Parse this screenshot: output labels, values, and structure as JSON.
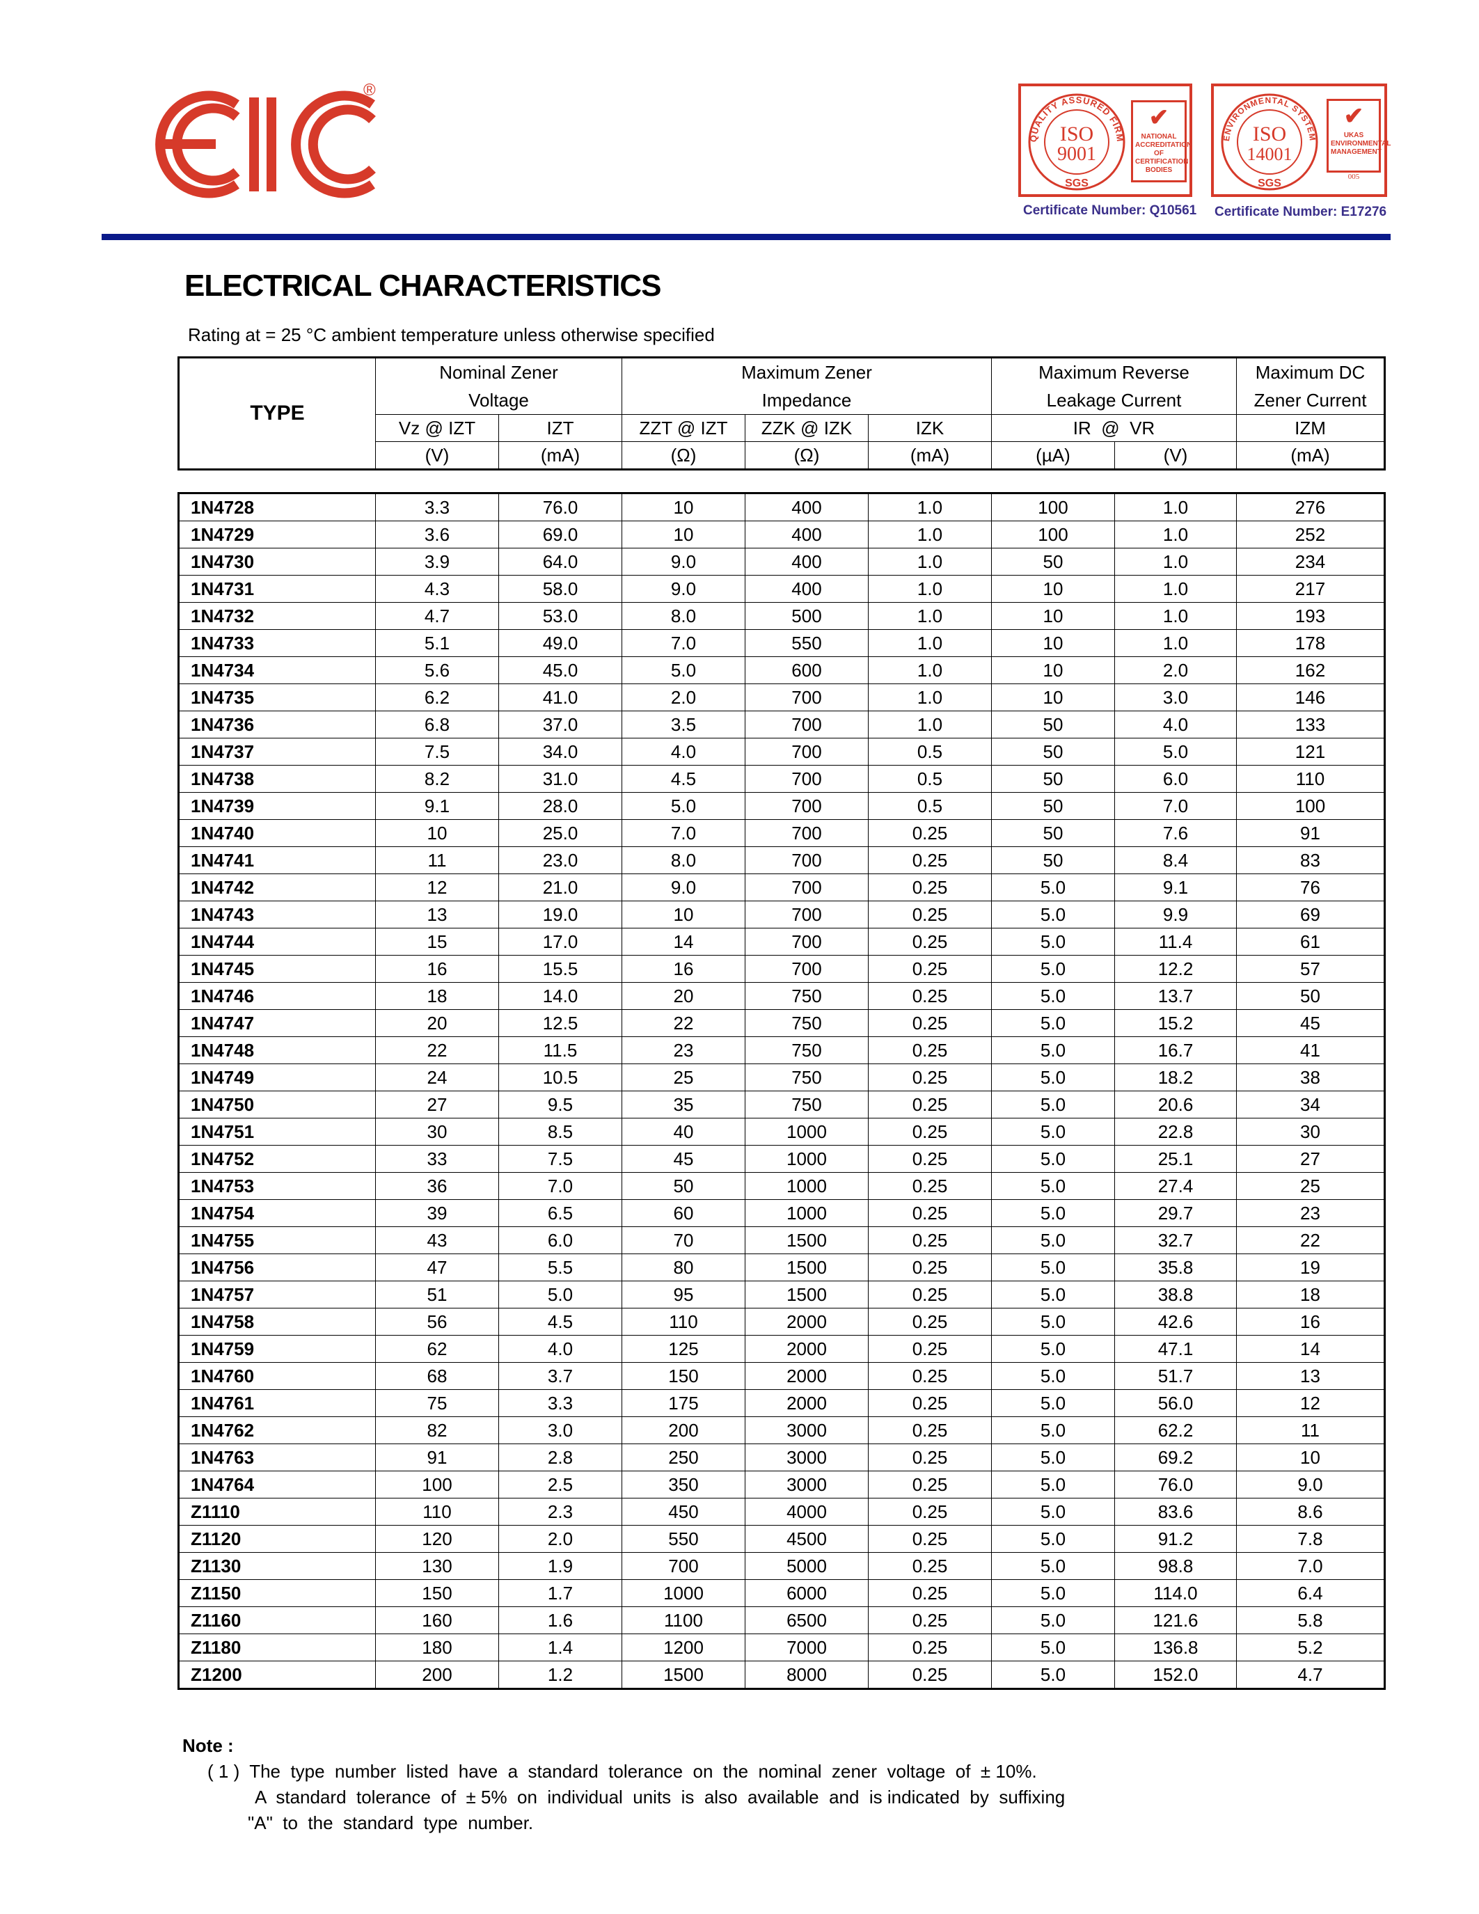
{
  "header": {
    "logo_text": "EIC",
    "registered": "®",
    "cert1": {
      "iso": "ISO",
      "num": "9001",
      "ring": "QUALITY ASSURED FIRM",
      "sgs": "SGS",
      "badge": "NATIONAL ACCREDITATION OF CERTIFICATION BODIES",
      "number": "Certificate Number: Q10561"
    },
    "cert2": {
      "iso": "ISO",
      "num": "14001",
      "ring": "ENVIRONMENTAL SYSTEM",
      "sgs": "SGS",
      "badge": "UKAS ENVIRONMENTAL MANAGEMENT",
      "code": "005",
      "number": "Certificate Number: E17276"
    },
    "brand_color": "#d63a2a",
    "rule_color": "#0a1a8a"
  },
  "title": "ELECTRICAL CHARACTERISTICS",
  "rating": "Rating at  = 25 °C ambient temperature unless otherwise specified",
  "table": {
    "groups": [
      "TYPE",
      "Nominal Zener\nVoltage",
      "Maximum Zener\nImpedance",
      "Maximum Reverse\nLeakage Current",
      "Maximum DC\nZener Current"
    ],
    "params": [
      "Vz @ IZT",
      "IZT",
      "ZZT @ IZT",
      "ZZK @ IZK",
      "IZK",
      "IR  @  VR",
      "IZM"
    ],
    "units": [
      "(V)",
      "(mA)",
      "(Ω)",
      "(Ω)",
      "(mA)",
      "(µA)",
      "(V)",
      "(mA)"
    ],
    "rows": [
      [
        "1N4728",
        "3.3",
        "76.0",
        "10",
        "400",
        "1.0",
        "100",
        "1.0",
        "276"
      ],
      [
        "1N4729",
        "3.6",
        "69.0",
        "10",
        "400",
        "1.0",
        "100",
        "1.0",
        "252"
      ],
      [
        "1N4730",
        "3.9",
        "64.0",
        "9.0",
        "400",
        "1.0",
        "50",
        "1.0",
        "234"
      ],
      [
        "1N4731",
        "4.3",
        "58.0",
        "9.0",
        "400",
        "1.0",
        "10",
        "1.0",
        "217"
      ],
      [
        "1N4732",
        "4.7",
        "53.0",
        "8.0",
        "500",
        "1.0",
        "10",
        "1.0",
        "193"
      ],
      [
        "1N4733",
        "5.1",
        "49.0",
        "7.0",
        "550",
        "1.0",
        "10",
        "1.0",
        "178"
      ],
      [
        "1N4734",
        "5.6",
        "45.0",
        "5.0",
        "600",
        "1.0",
        "10",
        "2.0",
        "162"
      ],
      [
        "1N4735",
        "6.2",
        "41.0",
        "2.0",
        "700",
        "1.0",
        "10",
        "3.0",
        "146"
      ],
      [
        "1N4736",
        "6.8",
        "37.0",
        "3.5",
        "700",
        "1.0",
        "50",
        "4.0",
        "133"
      ],
      [
        "1N4737",
        "7.5",
        "34.0",
        "4.0",
        "700",
        "0.5",
        "50",
        "5.0",
        "121"
      ],
      [
        "1N4738",
        "8.2",
        "31.0",
        "4.5",
        "700",
        "0.5",
        "50",
        "6.0",
        "110"
      ],
      [
        "1N4739",
        "9.1",
        "28.0",
        "5.0",
        "700",
        "0.5",
        "50",
        "7.0",
        "100"
      ],
      [
        "1N4740",
        "10",
        "25.0",
        "7.0",
        "700",
        "0.25",
        "50",
        "7.6",
        "91"
      ],
      [
        "1N4741",
        "11",
        "23.0",
        "8.0",
        "700",
        "0.25",
        "50",
        "8.4",
        "83"
      ],
      [
        "1N4742",
        "12",
        "21.0",
        "9.0",
        "700",
        "0.25",
        "5.0",
        "9.1",
        "76"
      ],
      [
        "1N4743",
        "13",
        "19.0",
        "10",
        "700",
        "0.25",
        "5.0",
        "9.9",
        "69"
      ],
      [
        "1N4744",
        "15",
        "17.0",
        "14",
        "700",
        "0.25",
        "5.0",
        "11.4",
        "61"
      ],
      [
        "1N4745",
        "16",
        "15.5",
        "16",
        "700",
        "0.25",
        "5.0",
        "12.2",
        "57"
      ],
      [
        "1N4746",
        "18",
        "14.0",
        "20",
        "750",
        "0.25",
        "5.0",
        "13.7",
        "50"
      ],
      [
        "1N4747",
        "20",
        "12.5",
        "22",
        "750",
        "0.25",
        "5.0",
        "15.2",
        "45"
      ],
      [
        "1N4748",
        "22",
        "11.5",
        "23",
        "750",
        "0.25",
        "5.0",
        "16.7",
        "41"
      ],
      [
        "1N4749",
        "24",
        "10.5",
        "25",
        "750",
        "0.25",
        "5.0",
        "18.2",
        "38"
      ],
      [
        "1N4750",
        "27",
        "9.5",
        "35",
        "750",
        "0.25",
        "5.0",
        "20.6",
        "34"
      ],
      [
        "1N4751",
        "30",
        "8.5",
        "40",
        "1000",
        "0.25",
        "5.0",
        "22.8",
        "30"
      ],
      [
        "1N4752",
        "33",
        "7.5",
        "45",
        "1000",
        "0.25",
        "5.0",
        "25.1",
        "27"
      ],
      [
        "1N4753",
        "36",
        "7.0",
        "50",
        "1000",
        "0.25",
        "5.0",
        "27.4",
        "25"
      ],
      [
        "1N4754",
        "39",
        "6.5",
        "60",
        "1000",
        "0.25",
        "5.0",
        "29.7",
        "23"
      ],
      [
        "1N4755",
        "43",
        "6.0",
        "70",
        "1500",
        "0.25",
        "5.0",
        "32.7",
        "22"
      ],
      [
        "1N4756",
        "47",
        "5.5",
        "80",
        "1500",
        "0.25",
        "5.0",
        "35.8",
        "19"
      ],
      [
        "1N4757",
        "51",
        "5.0",
        "95",
        "1500",
        "0.25",
        "5.0",
        "38.8",
        "18"
      ],
      [
        "1N4758",
        "56",
        "4.5",
        "110",
        "2000",
        "0.25",
        "5.0",
        "42.6",
        "16"
      ],
      [
        "1N4759",
        "62",
        "4.0",
        "125",
        "2000",
        "0.25",
        "5.0",
        "47.1",
        "14"
      ],
      [
        "1N4760",
        "68",
        "3.7",
        "150",
        "2000",
        "0.25",
        "5.0",
        "51.7",
        "13"
      ],
      [
        "1N4761",
        "75",
        "3.3",
        "175",
        "2000",
        "0.25",
        "5.0",
        "56.0",
        "12"
      ],
      [
        "1N4762",
        "82",
        "3.0",
        "200",
        "3000",
        "0.25",
        "5.0",
        "62.2",
        "11"
      ],
      [
        "1N4763",
        "91",
        "2.8",
        "250",
        "3000",
        "0.25",
        "5.0",
        "69.2",
        "10"
      ],
      [
        "1N4764",
        "100",
        "2.5",
        "350",
        "3000",
        "0.25",
        "5.0",
        "76.0",
        "9.0"
      ],
      [
        "Z1110",
        "110",
        "2.3",
        "450",
        "4000",
        "0.25",
        "5.0",
        "83.6",
        "8.6"
      ],
      [
        "Z1120",
        "120",
        "2.0",
        "550",
        "4500",
        "0.25",
        "5.0",
        "91.2",
        "7.8"
      ],
      [
        "Z1130",
        "130",
        "1.9",
        "700",
        "5000",
        "0.25",
        "5.0",
        "98.8",
        "7.0"
      ],
      [
        "Z1150",
        "150",
        "1.7",
        "1000",
        "6000",
        "0.25",
        "5.0",
        "114.0",
        "6.4"
      ],
      [
        "Z1160",
        "160",
        "1.6",
        "1100",
        "6500",
        "0.25",
        "5.0",
        "121.6",
        "5.8"
      ],
      [
        "Z1180",
        "180",
        "1.4",
        "1200",
        "7000",
        "0.25",
        "5.0",
        "136.8",
        "5.2"
      ],
      [
        "Z1200",
        "200",
        "1.2",
        "1500",
        "8000",
        "0.25",
        "5.0",
        "152.0",
        "4.7"
      ]
    ]
  },
  "note": {
    "label": "Note :",
    "lines": [
      "( 1 )  The  type  number  listed  have  a  standard  tolerance  on  the  nominal  zener  voltage  of  ± 10%.",
      "A  standard  tolerance  of  ± 5%  on  individual  units  is  also  available  and  is indicated  by  suffixing",
      "\"A\"  to  the  standard  type  number."
    ]
  }
}
